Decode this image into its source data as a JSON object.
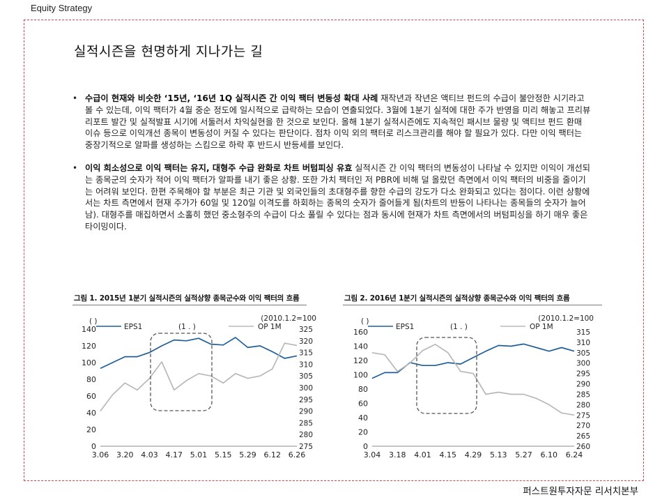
{
  "header": {
    "section_label": "Equity Strategy"
  },
  "page_title": "실적시즌을 현명하게 지나가는 길",
  "bullets": [
    {
      "bold": "수급이 현재와 비슷한 ‘15년, ‘16년 1Q 실적시즌 간 이익 팩터 변동성 확대 사례",
      "text": " 재작년과 작년은 액티브 펀드의 수급이 불안정한 시기라고 볼 수 있는데, 이익 팩터가 4월 중순 정도에 일시적으로 급락하는 모습이 연출되었다. 3월에 1분기 실적에 대한 주가 반영을 미리 해놓고 프리뷰 리포트 발간 및 실적발표 시기에 서둘러서 차익실현을 한 것으로 보인다. 올해 1분기 실적시즌에도 지속적인 패시브 물량 및 액티브 펀드 환매 이슈 등으로 이익개선 종목이 변동성이 커질 수 있다는 판단이다. 점차 이익 외의 팩터로 리스크관리를 해야 할 필요가 있다. 다만 이익 팩터는 중장기적으로 알파를 생성하는 스킴으로 하락 후 반드시 반등세를 보인다."
    },
    {
      "bold": "이익 희소성으로 이익 팩터는 유지, 대형주 수급 완화로 차트 버텀피싱 유효",
      "text": " 실적시즌 간 이익 팩터의 변동성이 나타날 수 있지만 이익이 개선되는 종목군의 숫자가 적어 이익 팩터가 알파를 내기 좋은 상황. 또한 가치 팩터인 저 PBR에 비해 덜 올랐던 측면에서 이익 팩터의 비중을 줄이기는 어려워 보인다. 한편 주목해야 할 부분은 최근 기관 및 외국인들의 초대형주를 향한 수급의 강도가 다소 완화되고 있다는 점이다. 이런 상황에서는 차트 측면에서 현재 주가가 60일 및 120일 이격도를 하회하는 종목의 숫자가 줄어들게 됨(차트의 반등이 나타나는 종목들의 숫자가 늘어남). 대형주를 매집하면서 소홀히 했던 중소형주의 수급이 다소 풀릴 수 있다는 점과 동시에 현재가 차트 측면에서의 버텀피싱을 하기 매우 좋은 타이밍이다."
    }
  ],
  "footer": {
    "org": "퍼스트원투자자문 리서치본부"
  },
  "chart_data": [
    {
      "type": "line",
      "title": "그림 1. 2015년 1분기 실적시즌의 실적상향 종목군수와 이익 팩터의 흐름",
      "left_unit": "(    )",
      "right_unit": "(2010.1.2=100",
      "legend_mid": "(1    .    )",
      "x_ticks": [
        "3.06",
        "3.20",
        "4.03",
        "4.17",
        "5.01",
        "5.15",
        "5.29",
        "6.12",
        "6.26"
      ],
      "ylim_left": [
        0,
        140
      ],
      "yticks_left": [
        0,
        20,
        40,
        60,
        80,
        100,
        120,
        140
      ],
      "ylim_right": [
        275,
        325
      ],
      "yticks_right": [
        275,
        280,
        285,
        290,
        295,
        300,
        305,
        310,
        315,
        320,
        325
      ],
      "ytick_labels_right": [
        "275",
        "280",
        "285",
        "290",
        "295",
        "300",
        "305",
        "310",
        "315",
        "320",
        "325"
      ],
      "series": [
        {
          "name": "EPS1",
          "axis": "left",
          "color": "#1f5e9a",
          "x": [
            0,
            0.5,
            1,
            1.5,
            2,
            2.5,
            3,
            3.5,
            4,
            4.5,
            5,
            5.5,
            6,
            6.5,
            7,
            7.5,
            8
          ],
          "values": [
            93,
            100,
            107,
            107,
            112,
            120,
            127,
            126,
            129,
            122,
            121,
            130,
            118,
            120,
            113,
            105,
            108
          ]
        },
        {
          "name": "OP 1M",
          "axis": "right",
          "color": "#b8b8b8",
          "x": [
            0,
            0.5,
            1,
            1.5,
            2,
            2.5,
            3,
            3.5,
            4,
            4.5,
            5,
            5.5,
            6,
            6.5,
            7,
            7.5,
            8
          ],
          "values": [
            290,
            297,
            302,
            299,
            304,
            311,
            299,
            303,
            306,
            305,
            302,
            306,
            304,
            305,
            308,
            319,
            318
          ]
        }
      ]
    },
    {
      "type": "line",
      "title": "그림 2. 2016년 1분기 실적시즌의 실적상향 종목군수와 이익 팩터의 흐름",
      "left_unit": "(    )",
      "right_unit": "(2010.1.2=100",
      "legend_mid": "(1    .    )",
      "x_ticks": [
        "3.04",
        "3.18",
        "4.01",
        "4.15",
        "4.29",
        "5.13",
        "5.27",
        "6.10",
        "6.24"
      ],
      "ylim_left": [
        0,
        160
      ],
      "yticks_left": [
        0,
        20,
        40,
        60,
        80,
        100,
        120,
        140,
        160
      ],
      "ylim_right": [
        260,
        315
      ],
      "yticks_right": [
        260,
        265,
        270,
        275,
        280,
        285,
        290,
        295,
        300,
        305,
        310,
        315
      ],
      "ytick_labels_right": [
        "260",
        "265",
        "270",
        "275",
        "280",
        "285",
        "290",
        "295",
        "300",
        "305",
        "310",
        "315"
      ],
      "series": [
        {
          "name": "EPS1",
          "axis": "left",
          "color": "#1f5e9a",
          "x": [
            0,
            0.5,
            1,
            1.5,
            2,
            2.5,
            3,
            3.5,
            4,
            4.5,
            5,
            5.5,
            6,
            6.5,
            7,
            7.5,
            8
          ],
          "values": [
            95,
            103,
            103,
            117,
            113,
            113,
            117,
            115,
            124,
            133,
            141,
            140,
            143,
            138,
            133,
            138,
            133
          ]
        },
        {
          "name": "OP 1M",
          "axis": "right",
          "color": "#b8b8b8",
          "x": [
            0,
            0.5,
            1,
            1.5,
            2,
            2.5,
            3,
            3.5,
            4,
            4.5,
            5,
            5.5,
            6,
            6.5,
            7,
            7.5,
            8
          ],
          "values": [
            305,
            304,
            296,
            300,
            306,
            309,
            305,
            296,
            295,
            285,
            286,
            285,
            285,
            283,
            280,
            276,
            275
          ]
        }
      ]
    }
  ]
}
